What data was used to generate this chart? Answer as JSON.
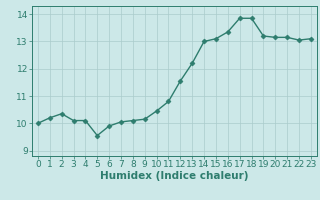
{
  "x": [
    0,
    1,
    2,
    3,
    4,
    5,
    6,
    7,
    8,
    9,
    10,
    11,
    12,
    13,
    14,
    15,
    16,
    17,
    18,
    19,
    20,
    21,
    22,
    23
  ],
  "y": [
    10.0,
    10.2,
    10.35,
    10.1,
    10.1,
    9.55,
    9.9,
    10.05,
    10.1,
    10.15,
    10.45,
    10.8,
    11.55,
    12.2,
    13.0,
    13.1,
    13.35,
    13.85,
    13.85,
    13.2,
    13.15,
    13.15,
    13.05,
    13.1
  ],
  "line_color": "#2e7d6e",
  "marker": "D",
  "marker_size": 2.5,
  "bg_color": "#cce8e8",
  "grid_color": "#aacccc",
  "xlabel": "Humidex (Indice chaleur)",
  "xlim": [
    -0.5,
    23.5
  ],
  "ylim": [
    8.8,
    14.3
  ],
  "yticks": [
    9,
    10,
    11,
    12,
    13,
    14
  ],
  "xticks": [
    0,
    1,
    2,
    3,
    4,
    5,
    6,
    7,
    8,
    9,
    10,
    11,
    12,
    13,
    14,
    15,
    16,
    17,
    18,
    19,
    20,
    21,
    22,
    23
  ],
  "xlabel_fontsize": 7.5,
  "tick_fontsize": 6.5,
  "linewidth": 1.0
}
